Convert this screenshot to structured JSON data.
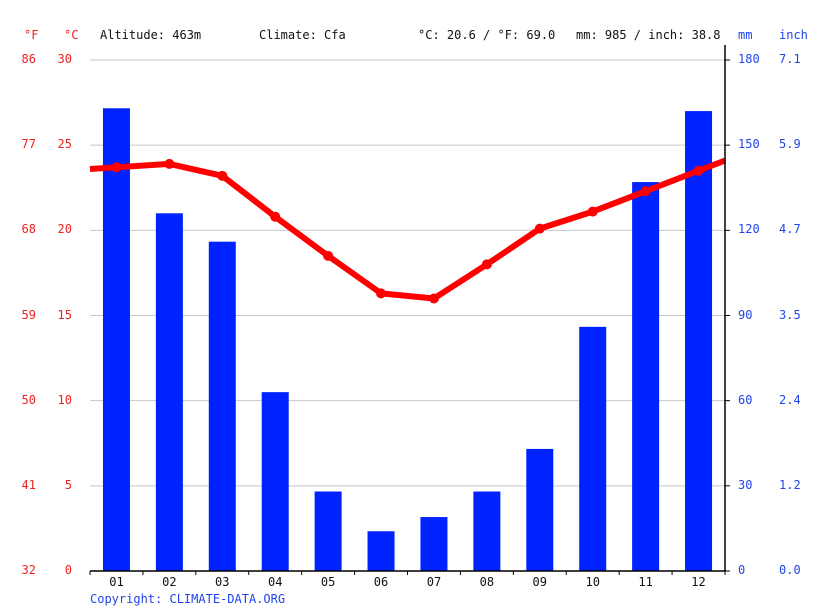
{
  "header": {
    "unit_f": "°F",
    "unit_c": "°C",
    "altitude": "Altitude: 463m",
    "climate": "Climate: Cfa",
    "temp_summary": "°C: 20.6 / °F: 69.0",
    "precip_summary": "mm: 985 / inch: 38.8",
    "unit_mm": "mm",
    "unit_inch": "inch"
  },
  "footer": {
    "copyright": "Copyright: CLIMATE-DATA.ORG"
  },
  "colors": {
    "temperature": "#ff0000",
    "precipitation": "#0022ff",
    "grid": "#c8c8c8",
    "left_axis_text": "#ee2222",
    "right_axis_text": "#2244ee"
  },
  "axes": {
    "fahrenheit_ticks": [
      "86",
      "77",
      "68",
      "59",
      "50",
      "41",
      "32"
    ],
    "celsius_ticks": [
      "30",
      "25",
      "20",
      "15",
      "10",
      "5",
      "0"
    ],
    "mm_ticks": [
      "180",
      "150",
      "120",
      "90",
      "60",
      "30",
      "0"
    ],
    "inch_ticks": [
      "7.1",
      "5.9",
      "4.7",
      "3.5",
      "2.4",
      "1.2",
      "0.0"
    ],
    "months": [
      "01",
      "02",
      "03",
      "04",
      "05",
      "06",
      "07",
      "08",
      "09",
      "10",
      "11",
      "12"
    ]
  },
  "chart_data": {
    "type": "bar+line",
    "title": "",
    "categories": [
      "01",
      "02",
      "03",
      "04",
      "05",
      "06",
      "07",
      "08",
      "09",
      "10",
      "11",
      "12"
    ],
    "series": [
      {
        "name": "Precipitation (mm)",
        "type": "bar",
        "axis": "right",
        "color": "#0022ff",
        "values": [
          163,
          126,
          116,
          63,
          28,
          14,
          19,
          28,
          43,
          86,
          137,
          162
        ]
      },
      {
        "name": "Temperature (°C)",
        "type": "line",
        "axis": "left",
        "color": "#ff0000",
        "values": [
          23.7,
          23.9,
          23.2,
          20.8,
          18.5,
          16.3,
          16.0,
          18.0,
          20.1,
          21.1,
          22.3,
          23.5
        ]
      }
    ],
    "left_axis": {
      "label": "°C",
      "secondary_label": "°F",
      "range": [
        0,
        30
      ],
      "ticks": [
        0,
        5,
        10,
        15,
        20,
        25,
        30
      ],
      "fahrenheit": [
        32,
        41,
        50,
        59,
        68,
        77,
        86
      ]
    },
    "right_axis": {
      "label": "mm",
      "secondary_label": "inch",
      "range": [
        0,
        180
      ],
      "ticks": [
        0,
        30,
        60,
        90,
        120,
        150,
        180
      ],
      "inch": [
        0.0,
        1.2,
        2.4,
        3.5,
        4.7,
        5.9,
        7.1
      ]
    },
    "annotations": [
      "Altitude: 463m",
      "Climate: Cfa",
      "°C: 20.6 / °F: 69.0",
      "mm: 985 / inch: 38.8"
    ],
    "grid": true,
    "legend": "none"
  }
}
